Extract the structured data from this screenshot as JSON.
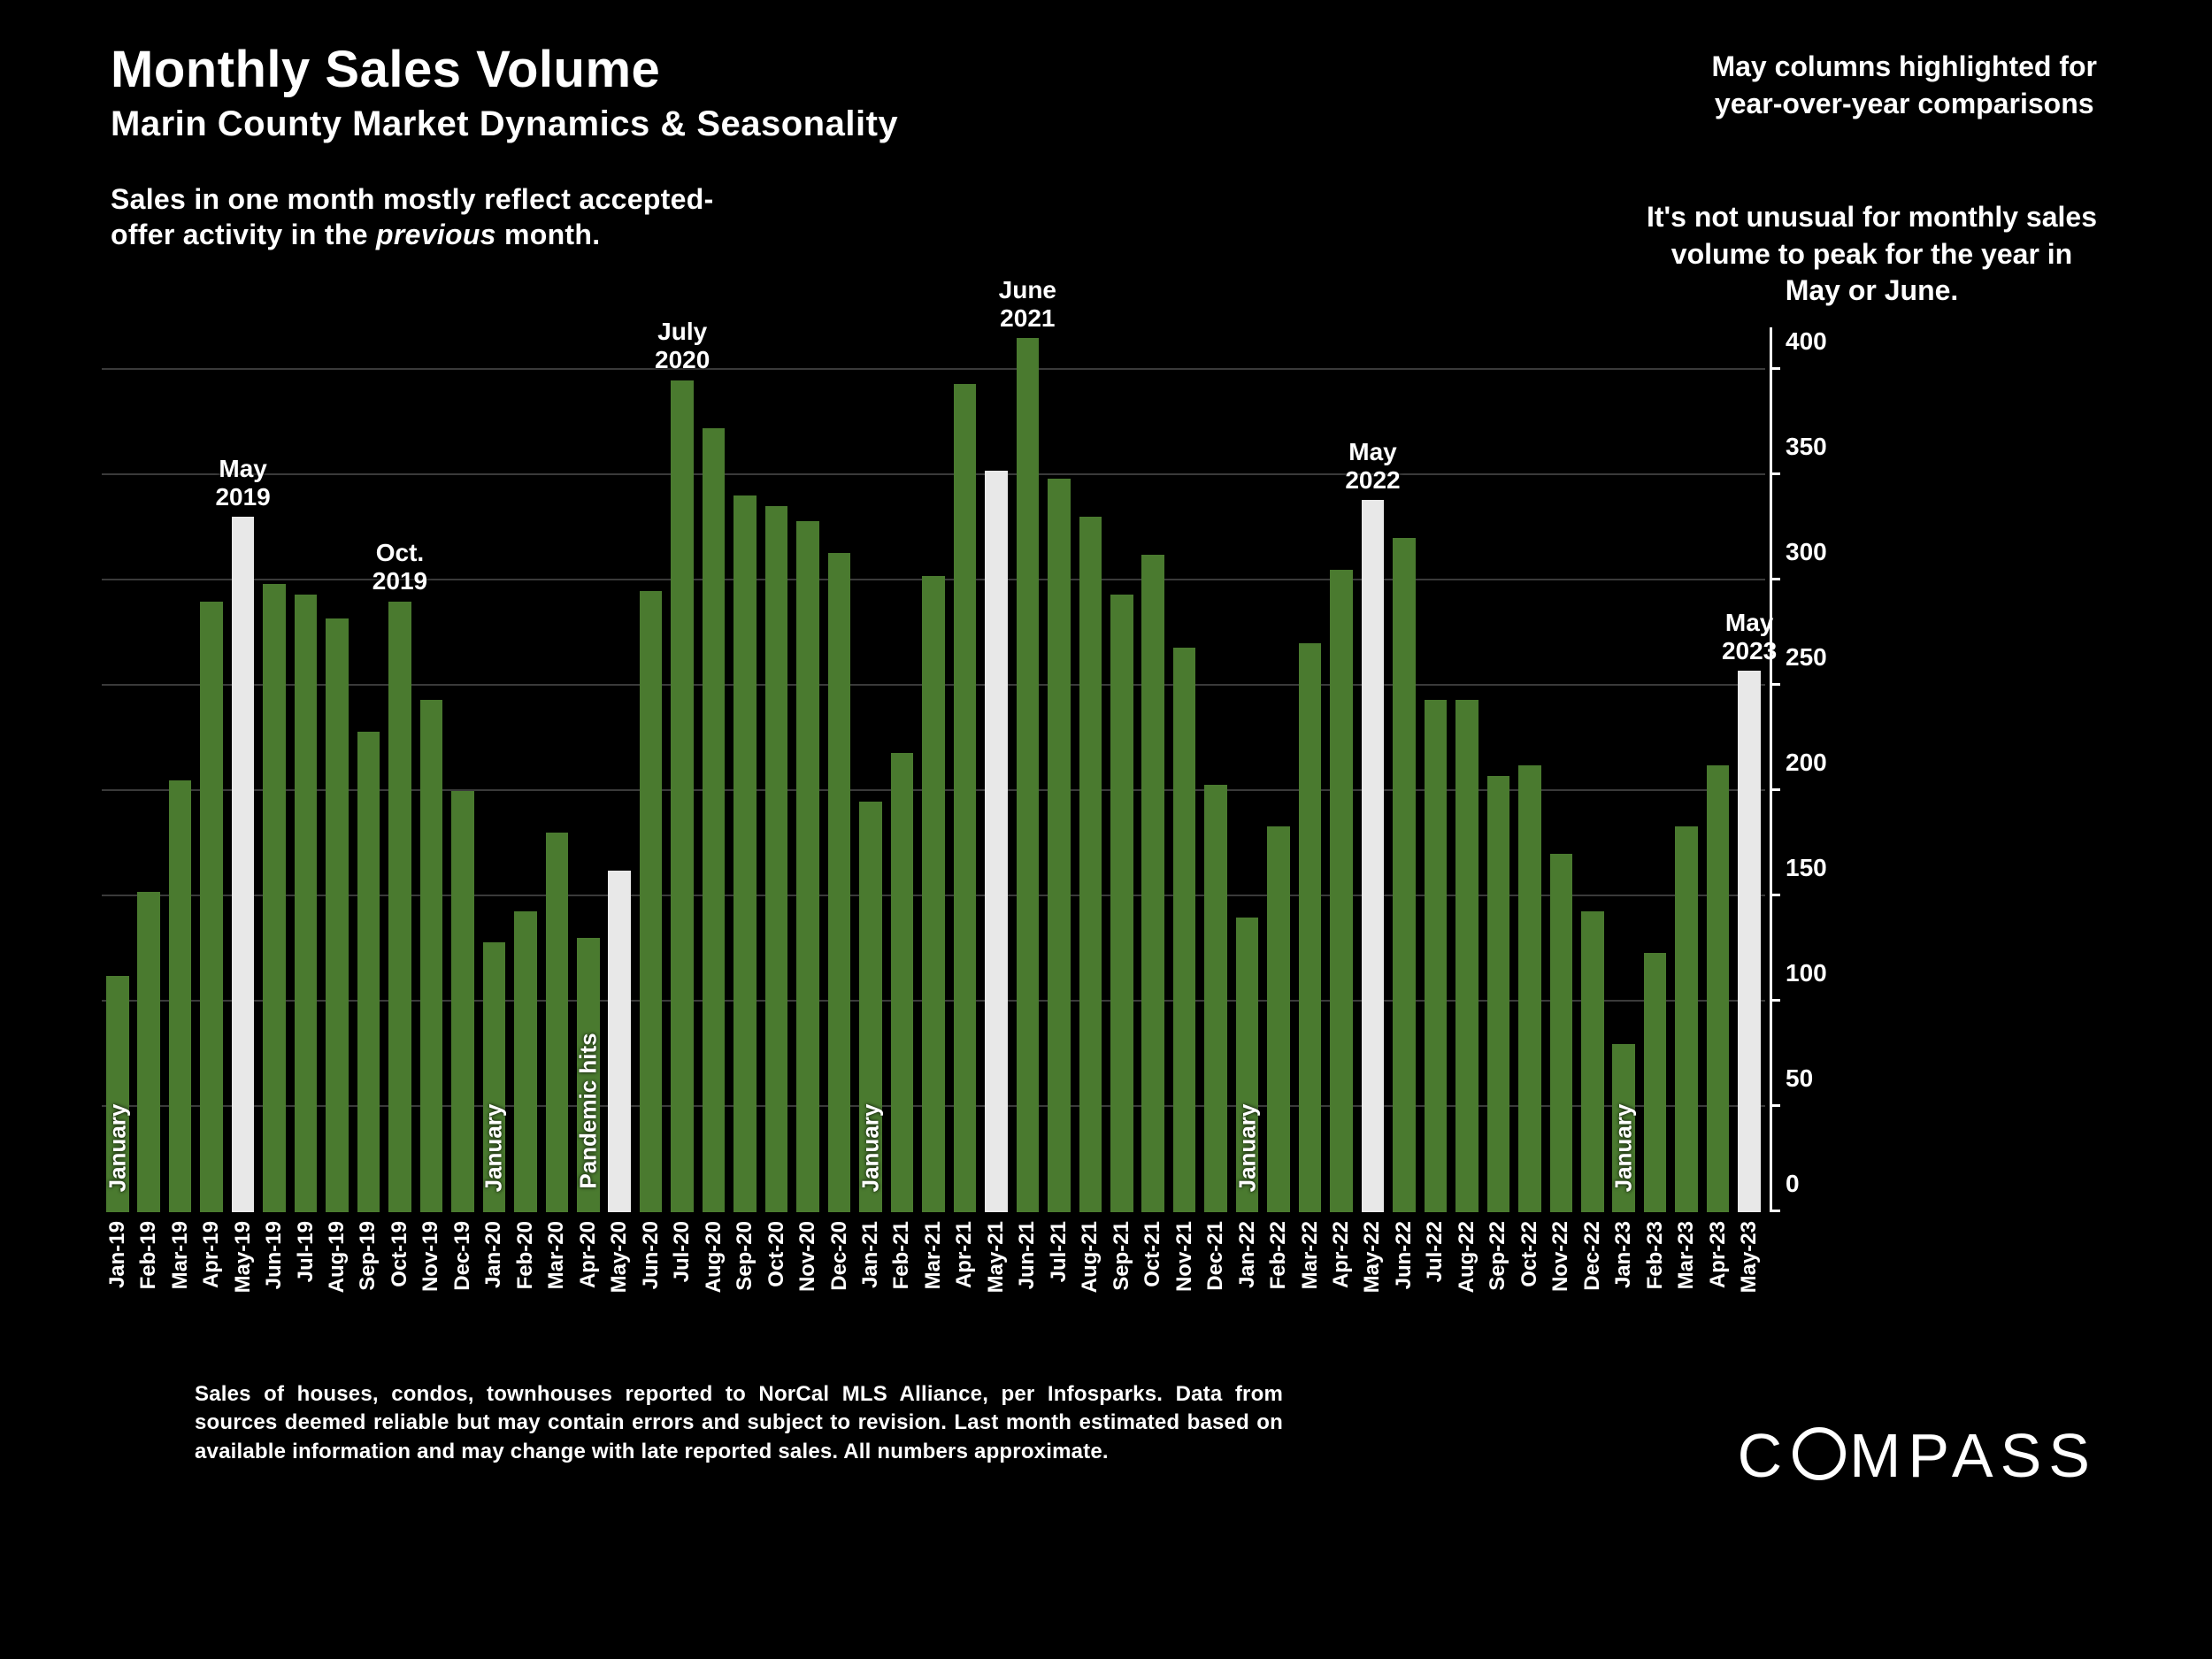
{
  "title": "Monthly Sales Volume",
  "subtitle": "Marin County Market Dynamics & Seasonality",
  "note_left_l1": "Sales in one month mostly reflect accepted-",
  "note_left_l2_a": "offer activity in the ",
  "note_left_l2_em": "previous",
  "note_left_l2_b": " month.",
  "note_right_top_l1": "May columns highlighted for",
  "note_right_top_l2": "year-over-year comparisons",
  "note_right_bottom_l1": "It's not unusual for monthly sales",
  "note_right_bottom_l2": "volume to peak for the year in",
  "note_right_bottom_l3": "May or June.",
  "footer": "Sales of houses, condos, townhouses reported to NorCal MLS Alliance, per Infosparks. Data from sources deemed reliable but may contain errors and subject to revision. Last month estimated based on available information and may change with late reported sales. All numbers approximate.",
  "logo_text": "COMPASS",
  "chart": {
    "type": "bar",
    "ylim": [
      0,
      420
    ],
    "yticks": [
      0,
      50,
      100,
      150,
      200,
      250,
      300,
      350,
      400
    ],
    "grid_values": [
      50,
      100,
      150,
      200,
      250,
      300,
      350,
      400
    ],
    "grid_color": "#3a3a3a",
    "background_color": "#000000",
    "bar_color_default": "#4a7a2f",
    "bar_color_highlight": "#e8e8e8",
    "axis_color": "#ffffff",
    "title_fontsize": 58,
    "label_fontsize": 28,
    "xtick_fontsize": 24,
    "callout_fontsize": 28,
    "bars": [
      {
        "label": "Jan-19",
        "value": 112,
        "vlabel": "January"
      },
      {
        "label": "Feb-19",
        "value": 152
      },
      {
        "label": "Mar-19",
        "value": 205
      },
      {
        "label": "Apr-19",
        "value": 290
      },
      {
        "label": "May-19",
        "value": 330,
        "highlight": true,
        "callout": "May\n2019"
      },
      {
        "label": "Jun-19",
        "value": 298
      },
      {
        "label": "Jul-19",
        "value": 293
      },
      {
        "label": "Aug-19",
        "value": 282
      },
      {
        "label": "Sep-19",
        "value": 228
      },
      {
        "label": "Oct-19",
        "value": 290,
        "callout": "Oct.\n2019"
      },
      {
        "label": "Nov-19",
        "value": 243
      },
      {
        "label": "Dec-19",
        "value": 200
      },
      {
        "label": "Jan-20",
        "value": 128,
        "vlabel": "January"
      },
      {
        "label": "Feb-20",
        "value": 143
      },
      {
        "label": "Mar-20",
        "value": 180
      },
      {
        "label": "Apr-20",
        "value": 130,
        "vlabel": "Pandemic hits"
      },
      {
        "label": "May-20",
        "value": 162,
        "highlight": true
      },
      {
        "label": "Jun-20",
        "value": 295
      },
      {
        "label": "Jul-20",
        "value": 395,
        "callout": "July\n2020"
      },
      {
        "label": "Aug-20",
        "value": 372
      },
      {
        "label": "Sep-20",
        "value": 340
      },
      {
        "label": "Oct-20",
        "value": 335
      },
      {
        "label": "Nov-20",
        "value": 328
      },
      {
        "label": "Dec-20",
        "value": 313
      },
      {
        "label": "Jan-21",
        "value": 195,
        "vlabel": "January"
      },
      {
        "label": "Feb-21",
        "value": 218
      },
      {
        "label": "Mar-21",
        "value": 302
      },
      {
        "label": "Apr-21",
        "value": 393
      },
      {
        "label": "May-21",
        "value": 352,
        "highlight": true
      },
      {
        "label": "Jun-21",
        "value": 415,
        "callout": "June\n2021"
      },
      {
        "label": "Jul-21",
        "value": 348
      },
      {
        "label": "Aug-21",
        "value": 330
      },
      {
        "label": "Sep-21",
        "value": 293
      },
      {
        "label": "Oct-21",
        "value": 312
      },
      {
        "label": "Nov-21",
        "value": 268
      },
      {
        "label": "Dec-21",
        "value": 203
      },
      {
        "label": "Jan-22",
        "value": 140,
        "vlabel": "January"
      },
      {
        "label": "Feb-22",
        "value": 183
      },
      {
        "label": "Mar-22",
        "value": 270
      },
      {
        "label": "Apr-22",
        "value": 305
      },
      {
        "label": "May-22",
        "value": 338,
        "highlight": true,
        "callout": "May\n2022"
      },
      {
        "label": "Jun-22",
        "value": 320
      },
      {
        "label": "Jul-22",
        "value": 243
      },
      {
        "label": "Aug-22",
        "value": 243
      },
      {
        "label": "Sep-22",
        "value": 207
      },
      {
        "label": "Oct-22",
        "value": 212
      },
      {
        "label": "Nov-22",
        "value": 170
      },
      {
        "label": "Dec-22",
        "value": 143
      },
      {
        "label": "Jan-23",
        "value": 80,
        "vlabel": "January"
      },
      {
        "label": "Feb-23",
        "value": 123
      },
      {
        "label": "Mar-23",
        "value": 183
      },
      {
        "label": "Apr-23",
        "value": 212
      },
      {
        "label": "May-23",
        "value": 257,
        "highlight": true,
        "callout": "May\n2023"
      }
    ]
  }
}
